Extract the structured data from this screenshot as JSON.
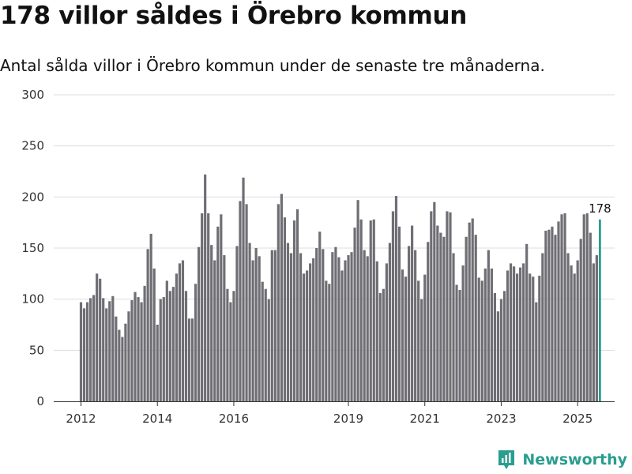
{
  "title": "178 villor såldes i Örebro kommun",
  "subtitle": "Antal sålda villor i Örebro kommun under de senaste tre månaderna.",
  "brand": "Newsworthy",
  "colors": {
    "bar": "#6f6e74",
    "highlight": "#2a9d8f",
    "grid": "#dddddd",
    "axis": "#333333"
  },
  "chart_data": {
    "type": "bar",
    "title": "178 villor såldes i Örebro kommun",
    "subtitle": "Antal sålda villor i Örebro kommun under de senaste tre månaderna.",
    "xlabel": "",
    "ylabel": "",
    "ylim": [
      0,
      300
    ],
    "yticks": [
      0,
      50,
      100,
      150,
      200,
      250,
      300
    ],
    "x_ticks": [
      {
        "label": "2012",
        "index": 0
      },
      {
        "label": "2014",
        "index": 24
      },
      {
        "label": "2016",
        "index": 48
      },
      {
        "label": "2019",
        "index": 84
      },
      {
        "label": "2021",
        "index": 108
      },
      {
        "label": "2023",
        "index": 132
      },
      {
        "label": "2025",
        "index": 156
      }
    ],
    "start": "2012-01",
    "highlight_label": "178",
    "values": [
      97,
      91,
      97,
      101,
      104,
      125,
      120,
      101,
      91,
      98,
      103,
      83,
      70,
      63,
      76,
      88,
      99,
      107,
      102,
      97,
      113,
      149,
      164,
      130,
      75,
      100,
      102,
      118,
      108,
      112,
      125,
      135,
      138,
      108,
      81,
      81,
      115,
      151,
      184,
      222,
      184,
      153,
      138,
      171,
      183,
      143,
      110,
      97,
      108,
      152,
      196,
      219,
      193,
      155,
      138,
      150,
      142,
      117,
      110,
      100,
      148,
      148,
      193,
      203,
      180,
      155,
      145,
      177,
      188,
      145,
      125,
      128,
      135,
      140,
      150,
      166,
      149,
      118,
      115,
      146,
      151,
      141,
      128,
      138,
      143,
      146,
      170,
      197,
      178,
      148,
      142,
      177,
      178,
      137,
      106,
      110,
      135,
      155,
      186,
      201,
      171,
      129,
      122,
      152,
      172,
      148,
      118,
      100,
      124,
      156,
      186,
      195,
      172,
      165,
      161,
      186,
      185,
      145,
      114,
      109,
      133,
      161,
      175,
      179,
      163,
      121,
      118,
      130,
      148,
      130,
      106,
      88,
      100,
      108,
      128,
      135,
      132,
      125,
      131,
      135,
      154,
      125,
      122,
      97,
      123,
      145,
      167,
      168,
      171,
      163,
      176,
      183,
      184,
      145,
      133,
      125,
      138,
      159,
      183,
      184,
      165,
      135,
      143,
      178
    ]
  }
}
